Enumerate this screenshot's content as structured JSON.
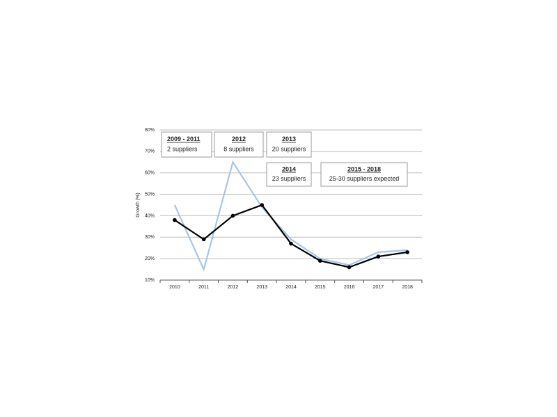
{
  "chart_data": {
    "type": "line",
    "y_label": "Growth (%)",
    "categories": [
      "2010",
      "2011",
      "2012",
      "2013",
      "2014",
      "2015",
      "2016",
      "2017",
      "2018"
    ],
    "series": [
      {
        "color": "#a9c4e4",
        "values": [
          45,
          15,
          65,
          44,
          29,
          20,
          17,
          23,
          24
        ],
        "markers": false
      },
      {
        "color": "#000000",
        "values": [
          38,
          29,
          40,
          45,
          27,
          19,
          16,
          21,
          23
        ],
        "markers": true
      }
    ],
    "ylim": [
      10,
      80
    ],
    "yticks": [
      {
        "value": 10,
        "label": "10%"
      },
      {
        "value": 20,
        "label": "20%"
      },
      {
        "value": 30,
        "label": "30%"
      },
      {
        "value": 40,
        "label": "40%"
      },
      {
        "value": 50,
        "label": "50%"
      },
      {
        "value": 60,
        "label": "60%"
      },
      {
        "value": 70,
        "label": "70%"
      },
      {
        "value": 80,
        "label": "80%"
      }
    ],
    "grid": true,
    "annotations": [
      {
        "heading": "2009 - 2011",
        "text": "2 suppliers"
      },
      {
        "heading": "2012",
        "text": "8 suppliers"
      },
      {
        "heading": "2013",
        "text": "20 suppliers"
      },
      {
        "heading": "2014",
        "text": "23 suppliers"
      },
      {
        "heading": "2015 - 2018",
        "text": "25-30 suppliers expected"
      }
    ]
  }
}
